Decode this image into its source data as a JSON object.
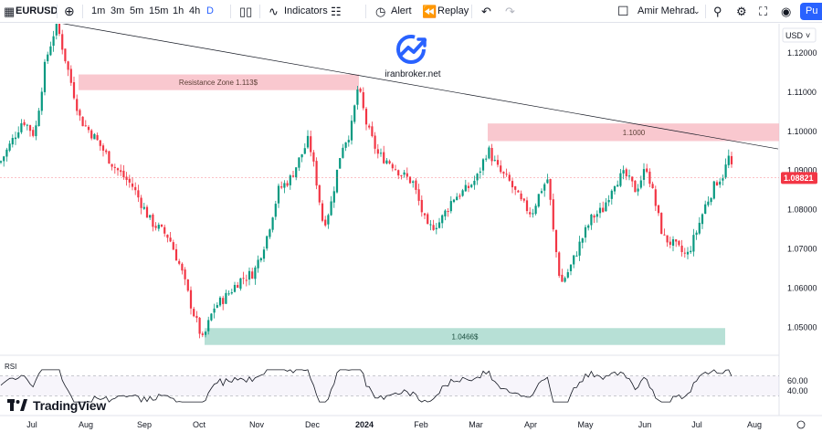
{
  "toolbar": {
    "symbol": "EURUSD",
    "timeframes": [
      "1m",
      "3m",
      "5m",
      "15m",
      "1h",
      "4h",
      "D"
    ],
    "active_timeframe": "D",
    "indicators_label": "Indicators",
    "alert_label": "Alert",
    "replay_label": "Replay",
    "user_name": "Amir Mehrad",
    "publish_label": "Pu"
  },
  "watermark": {
    "text": "iranbroker.net"
  },
  "branding": {
    "logo_text": "TradingView"
  },
  "colors": {
    "up": "#089981",
    "down": "#f23645",
    "up_body": "#26a69a",
    "resistance_zone": "#f7b6bf",
    "support_zone": "#a5d8cc",
    "price_badge": "#f23645",
    "accent": "#2962ff"
  },
  "chart_data": {
    "type": "candlestick",
    "symbol": "EURUSD",
    "currency": "USD",
    "x_tick_labels": [
      "Jul",
      "Aug",
      "Sep",
      "Oct",
      "Nov",
      "Dec",
      "2024",
      "Feb",
      "Mar",
      "Apr",
      "May",
      "Jun",
      "Jul",
      "Aug"
    ],
    "y_tick_labels": [
      "1.12000",
      "1.11000",
      "1.10000",
      "1.09000",
      "1.08000",
      "1.07000",
      "1.06000",
      "1.05000"
    ],
    "ylim": [
      1.0445,
      1.1265
    ],
    "last_price": "1.08821",
    "annotations": {
      "resistance_zone": {
        "label": "Resistance Zone 1.113$",
        "low": 1.1105,
        "high": 1.1145
      },
      "zone_1100": {
        "label": "1.1000",
        "low": 1.0975,
        "high": 1.102
      },
      "support_zone": {
        "label": "1.0466$",
        "low": 1.0455,
        "high": 1.0498
      },
      "trendline": {
        "from": {
          "month": "Jul 2023",
          "price": 1.1276
        },
        "to": {
          "month": "Jul 2024",
          "price": 1.0955
        }
      }
    },
    "path_points": [
      [
        0,
        1.092
      ],
      [
        12,
        1.097
      ],
      [
        25,
        1.103
      ],
      [
        38,
        1.099
      ],
      [
        50,
        1.118
      ],
      [
        62,
        1.1276
      ],
      [
        74,
        1.116
      ],
      [
        88,
        1.103
      ],
      [
        105,
        1.098
      ],
      [
        125,
        1.091
      ],
      [
        145,
        1.086
      ],
      [
        165,
        1.077
      ],
      [
        185,
        1.073
      ],
      [
        198,
        1.065
      ],
      [
        210,
        1.055
      ],
      [
        222,
        1.0466
      ],
      [
        234,
        1.055
      ],
      [
        248,
        1.058
      ],
      [
        262,
        1.062
      ],
      [
        278,
        1.064
      ],
      [
        292,
        1.073
      ],
      [
        305,
        1.085
      ],
      [
        318,
        1.088
      ],
      [
        330,
        1.094
      ],
      [
        338,
        1.098
      ],
      [
        346,
        1.088
      ],
      [
        354,
        1.076
      ],
      [
        362,
        1.081
      ],
      [
        374,
        1.096
      ],
      [
        384,
        1.1
      ],
      [
        392,
        1.1115
      ],
      [
        402,
        1.101
      ],
      [
        414,
        1.094
      ],
      [
        428,
        1.092
      ],
      [
        440,
        1.089
      ],
      [
        452,
        1.087
      ],
      [
        468,
        1.075
      ],
      [
        482,
        1.077
      ],
      [
        496,
        1.083
      ],
      [
        510,
        1.085
      ],
      [
        522,
        1.088
      ],
      [
        534,
        1.0955
      ],
      [
        546,
        1.09
      ],
      [
        558,
        1.087
      ],
      [
        570,
        1.082
      ],
      [
        582,
        1.079
      ],
      [
        592,
        1.085
      ],
      [
        600,
        1.088
      ],
      [
        606,
        1.074
      ],
      [
        614,
        1.061
      ],
      [
        624,
        1.065
      ],
      [
        636,
        1.072
      ],
      [
        648,
        1.078
      ],
      [
        660,
        1.08
      ],
      [
        672,
        1.087
      ],
      [
        684,
        1.089
      ],
      [
        696,
        1.085
      ],
      [
        708,
        1.091
      ],
      [
        716,
        1.083
      ],
      [
        726,
        1.073
      ],
      [
        738,
        1.071
      ],
      [
        752,
        1.068
      ],
      [
        762,
        1.074
      ],
      [
        772,
        1.081
      ],
      [
        784,
        1.087
      ],
      [
        792,
        1.089
      ],
      [
        798,
        1.0935
      ],
      [
        803,
        1.0882
      ]
    ],
    "rsi": {
      "label": "RSI",
      "tick_labels": [
        "60.00",
        "40.00"
      ],
      "upper": 70,
      "lower": 30
    }
  }
}
